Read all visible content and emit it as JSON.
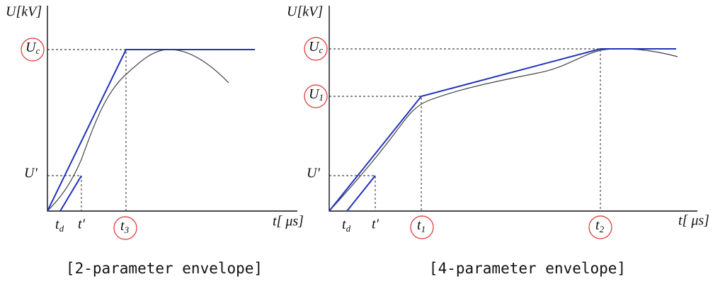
{
  "panels": [
    {
      "y_axis_label": "U[kV]",
      "x_axis_label": "t[ μs]",
      "y_labels": [
        {
          "main": "U",
          "sub": "c"
        },
        {
          "main": "U'"
        }
      ],
      "x_labels": [
        {
          "main": "t",
          "sub": "d"
        },
        {
          "main": "t'"
        },
        {
          "main": "t",
          "sub": "3"
        }
      ],
      "caption": "[2-parameter envelope]"
    },
    {
      "y_axis_label": "U[kV]",
      "x_axis_label": "t[ μs]",
      "y_labels": [
        {
          "main": "U",
          "sub": "c"
        },
        {
          "main": "U",
          "sub": "1"
        },
        {
          "main": "U'"
        }
      ],
      "x_labels": [
        {
          "main": "t",
          "sub": "d"
        },
        {
          "main": "t'"
        },
        {
          "main": "t",
          "sub": "1"
        },
        {
          "main": "t",
          "sub": "2"
        }
      ],
      "caption": "[4-parameter envelope]"
    }
  ]
}
